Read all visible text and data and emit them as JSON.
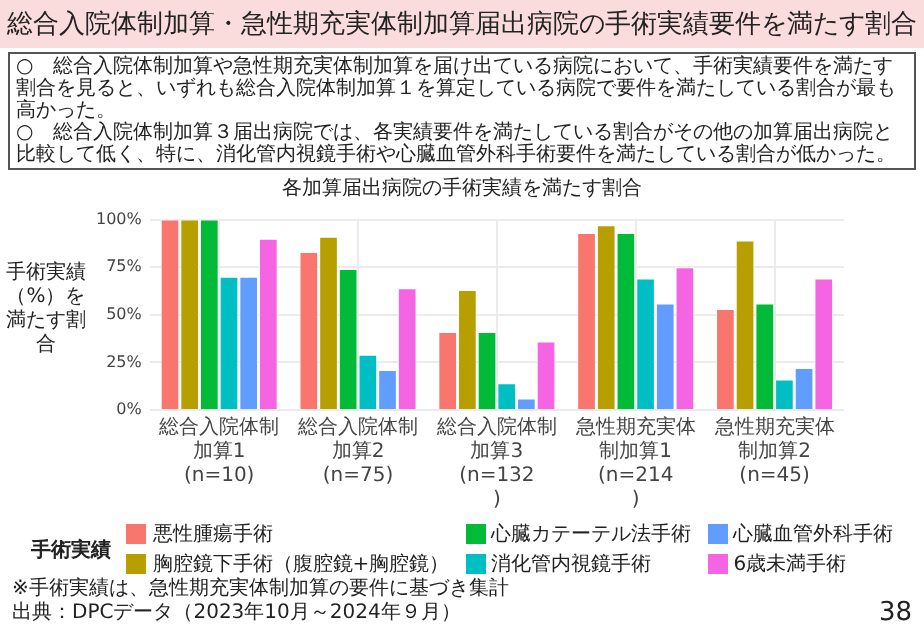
{
  "chart_data": {
    "type": "bar",
    "title": "総合入院体制加算・急性期充実体制加算届出病院の手術実績要件を満たす割合",
    "subtitle": "各加算届出病院の手術実績を満たす割合",
    "ylabel": "手術実績（%）を満たす割合",
    "legend_title": "手術実績",
    "categories": [
      "総合入院体制加算1\n(n=10)",
      "総合入院体制加算2\n(n=75)",
      "総合入院体制加算3\n(n=132)",
      "急性期充実体制加算1\n(n=214)",
      "急性期充実体制加算2\n(n=45)"
    ],
    "series": [
      {
        "name": "悪性腫瘍手術",
        "color": "#f8766d",
        "values": [
          100,
          83,
          41,
          93,
          53
        ]
      },
      {
        "name": "胸腔鏡下手術（腹腔鏡+胸腔鏡）",
        "color": "#b79f00",
        "values": [
          100,
          91,
          63,
          97,
          89
        ]
      },
      {
        "name": "心臓カテーテル法手術",
        "color": "#00ba38",
        "values": [
          100,
          74,
          41,
          93,
          56
        ]
      },
      {
        "name": "消化管内視鏡手術",
        "color": "#00bfc4",
        "values": [
          70,
          29,
          14,
          69,
          16
        ]
      },
      {
        "name": "心臓血管外科手術",
        "color": "#619cff",
        "values": [
          70,
          21,
          6,
          56,
          22
        ]
      },
      {
        "name": "6歳未満手術",
        "color": "#f564e3",
        "values": [
          90,
          64,
          36,
          75,
          69
        ]
      }
    ],
    "ylim": [
      0,
      100
    ],
    "yticks": [
      {
        "value": 0,
        "label": "0%"
      },
      {
        "value": 25,
        "label": "25%"
      },
      {
        "value": 50,
        "label": "50%"
      },
      {
        "value": 75,
        "label": "75%"
      },
      {
        "value": 100,
        "label": "100%"
      }
    ],
    "grid": true,
    "legend": "bottom",
    "annotations": [
      "○　総合入院体制加算や急性期充実体制加算を届け出ている病院において、手術実績要件を満たす割合を見ると、いずれも総合入院体制加算１を算定している病院で要件を満たしている割合が最も高かった。",
      "○　総合入院体制加算３届出病院では、各実績要件を満たしている割合がその他の加算届出病院と比較して低く、特に、消化管内視鏡手術や心臓血管外科手術要件を満たしている割合が低かった。",
      "※手術実績は、急性期充実体制加算の要件に基づき集計",
      "出典：DPCデータ（2023年10月～2024年９月）",
      "38"
    ]
  }
}
